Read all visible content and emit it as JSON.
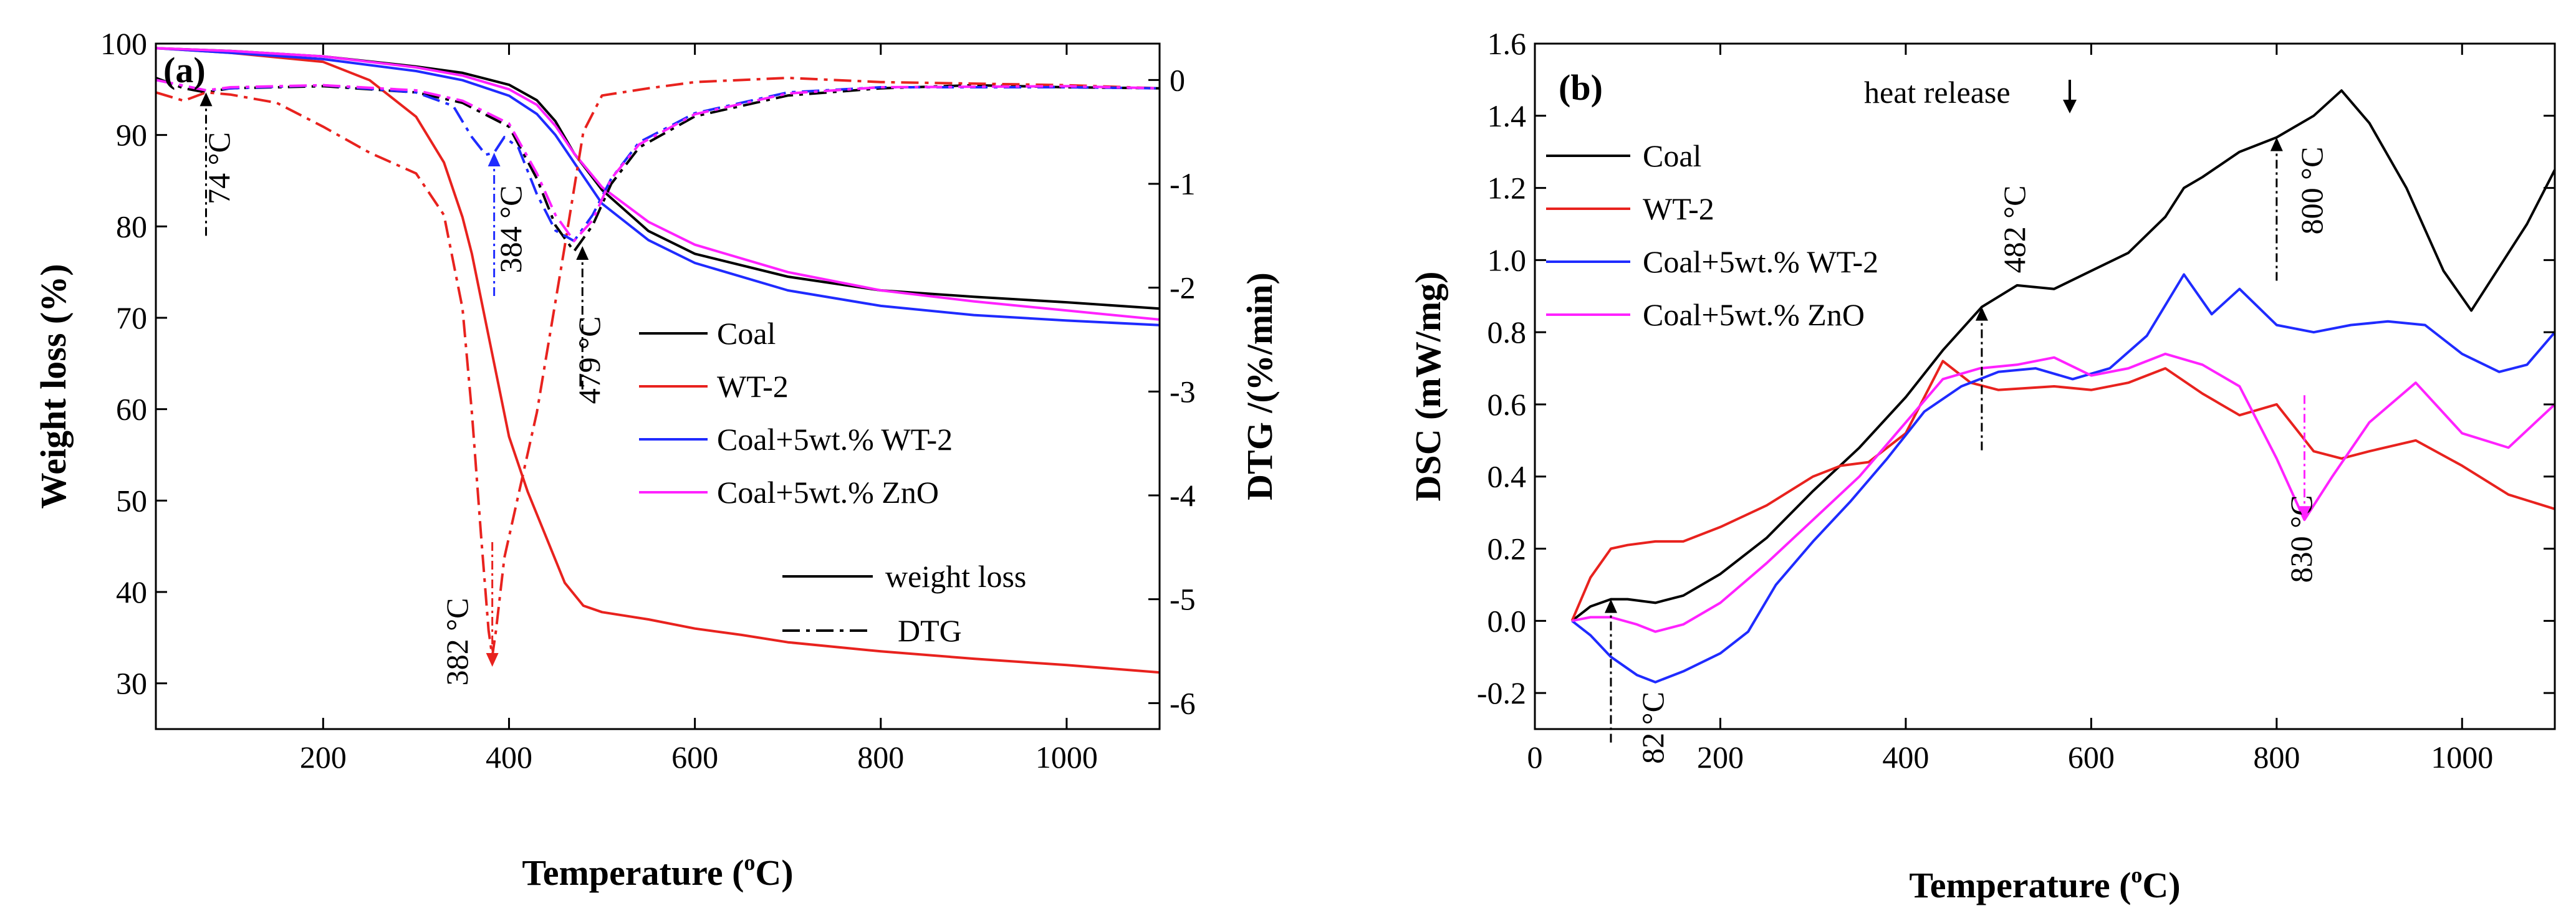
{
  "chart_data": [
    {
      "type": "line",
      "panel_label": "(a)",
      "xlabel_prefix": "Temperature (",
      "xlabel_sup": "o",
      "xlabel_suffix": "C)",
      "ylabel": "Weight loss (%)",
      "y2label": "DTG /(%/min)",
      "xlim": [
        20,
        1100
      ],
      "ylim": [
        25,
        100
      ],
      "y2lim": [
        -6.25,
        0.35
      ],
      "xticks": [
        "200",
        "400",
        "600",
        "800",
        "1000"
      ],
      "xtick_values": [
        200,
        400,
        600,
        800,
        1000
      ],
      "yticks": [
        "30",
        "40",
        "50",
        "60",
        "70",
        "80",
        "90",
        "100"
      ],
      "ytick_values": [
        30,
        40,
        50,
        60,
        70,
        80,
        90,
        100
      ],
      "y2ticks": [
        "0",
        "-1",
        "-2",
        "-3",
        "-4",
        "-5",
        "-6"
      ],
      "y2tick_values": [
        0,
        -1,
        -2,
        -3,
        -4,
        -5,
        -6
      ],
      "series": [
        {
          "name": "Coal",
          "color": "#000000",
          "axis": "left",
          "style": "solid",
          "x": [
            20,
            100,
            200,
            300,
            350,
            400,
            430,
            450,
            470,
            500,
            550,
            600,
            700,
            800,
            900,
            1000,
            1100
          ],
          "y": [
            99.5,
            99.2,
            98.6,
            97.5,
            96.8,
            95.5,
            93.8,
            91.5,
            88,
            84,
            79.5,
            77,
            74.5,
            73,
            72.3,
            71.7,
            71
          ]
        },
        {
          "name": "WT-2",
          "color": "#e8221e",
          "axis": "left",
          "style": "solid",
          "x": [
            20,
            100,
            200,
            250,
            300,
            330,
            350,
            360,
            370,
            380,
            390,
            400,
            420,
            440,
            460,
            480,
            500,
            550,
            600,
            650,
            700,
            800,
            900,
            1000,
            1100
          ],
          "y": [
            99.5,
            99,
            98,
            96,
            92,
            87,
            81,
            77,
            72,
            67,
            62,
            57,
            51,
            46,
            41,
            38.5,
            37.8,
            37,
            36,
            35.3,
            34.5,
            33.5,
            32.7,
            32,
            31.2
          ]
        },
        {
          "name": "Coal+5wt.% WT-2",
          "color": "#1f2bff",
          "axis": "left",
          "style": "solid",
          "x": [
            20,
            100,
            200,
            300,
            350,
            400,
            430,
            450,
            470,
            500,
            550,
            600,
            700,
            800,
            900,
            1000,
            1100
          ],
          "y": [
            99.5,
            99,
            98.3,
            97,
            96,
            94.3,
            92.3,
            90,
            87,
            82.5,
            78.5,
            76,
            73,
            71.3,
            70.3,
            69.7,
            69.2
          ]
        },
        {
          "name": "Coal+5wt.% ZnO",
          "color": "#ff22ff",
          "axis": "left",
          "style": "solid",
          "x": [
            20,
            100,
            200,
            300,
            350,
            400,
            430,
            450,
            470,
            500,
            550,
            600,
            700,
            800,
            900,
            1000,
            1100
          ],
          "y": [
            99.5,
            99.2,
            98.6,
            97.4,
            96.5,
            95,
            93.3,
            91,
            88,
            84.3,
            80.5,
            78,
            75,
            73,
            71.8,
            70.8,
            69.8
          ]
        },
        {
          "name": "Coal DTG",
          "color": "#000000",
          "axis": "right",
          "style": "dashdot",
          "x": [
            20,
            50,
            74,
            100,
            200,
            300,
            350,
            400,
            430,
            450,
            470,
            490,
            510,
            540,
            600,
            700,
            800,
            900,
            1000,
            1100
          ],
          "y": [
            0.02,
            -0.08,
            -0.12,
            -0.08,
            -0.06,
            -0.12,
            -0.22,
            -0.45,
            -0.95,
            -1.4,
            -1.65,
            -1.4,
            -1.0,
            -0.65,
            -0.35,
            -0.15,
            -0.08,
            -0.05,
            -0.07,
            -0.08
          ]
        },
        {
          "name": "WT-2 DTG",
          "color": "#e8221e",
          "axis": "right",
          "style": "dashdot",
          "x": [
            20,
            50,
            74,
            100,
            150,
            200,
            250,
            300,
            330,
            350,
            360,
            370,
            378,
            382,
            386,
            395,
            410,
            430,
            460,
            480,
            500,
            550,
            600,
            700,
            800,
            1000,
            1100
          ],
          "y": [
            -0.12,
            -0.2,
            -0.12,
            -0.14,
            -0.22,
            -0.45,
            -0.7,
            -0.9,
            -1.3,
            -2.2,
            -3.2,
            -4.4,
            -5.3,
            -5.55,
            -5.3,
            -4.6,
            -4.0,
            -3.2,
            -1.6,
            -0.5,
            -0.15,
            -0.08,
            -0.02,
            0.02,
            -0.02,
            -0.05,
            -0.08
          ]
        },
        {
          "name": "Coal+5wt.% WT-2 DTG",
          "color": "#1f2bff",
          "axis": "right",
          "style": "dashdot",
          "x": [
            20,
            74,
            100,
            200,
            300,
            340,
            360,
            375,
            384,
            395,
            410,
            430,
            450,
            470,
            490,
            510,
            540,
            600,
            700,
            800,
            1000,
            1100
          ],
          "y": [
            0.0,
            -0.1,
            -0.08,
            -0.05,
            -0.12,
            -0.25,
            -0.55,
            -0.72,
            -0.7,
            -0.55,
            -0.65,
            -1.1,
            -1.45,
            -1.55,
            -1.3,
            -0.95,
            -0.6,
            -0.32,
            -0.12,
            -0.07,
            -0.07,
            -0.08
          ]
        },
        {
          "name": "Coal+5wt.% ZnO DTG",
          "color": "#ff22ff",
          "axis": "right",
          "style": "dashdot",
          "x": [
            20,
            74,
            100,
            200,
            300,
            350,
            400,
            430,
            450,
            470,
            490,
            510,
            540,
            600,
            700,
            800,
            1000,
            1100
          ],
          "y": [
            0.0,
            -0.1,
            -0.07,
            -0.05,
            -0.1,
            -0.2,
            -0.42,
            -0.9,
            -1.3,
            -1.55,
            -1.35,
            -0.95,
            -0.62,
            -0.33,
            -0.13,
            -0.07,
            -0.06,
            -0.08
          ]
        }
      ],
      "legend": {
        "placement": "center-right",
        "entries": [
          "Coal",
          "WT-2",
          "Coal+5wt.% WT-2",
          "Coal+5wt.% ZnO"
        ],
        "colors": [
          "#000000",
          "#e8221e",
          "#1f2bff",
          "#ff22ff"
        ]
      },
      "style_legend": {
        "placement": "bottom-right",
        "entries": [
          "weight loss",
          "DTG"
        ]
      },
      "annotations": [
        {
          "text": "74 °C",
          "x": 74,
          "y_dtg": -0.12,
          "arrow_color": "#000000",
          "direction": "up"
        },
        {
          "text": "384 °C",
          "x": 384,
          "y_dtg": -0.7,
          "arrow_color": "#1f2bff",
          "direction": "up"
        },
        {
          "text": "479 °C",
          "x": 479,
          "y_dtg": -1.6,
          "arrow_color": "#000000",
          "direction": "up"
        },
        {
          "text": "382 °C",
          "x": 382,
          "y_dtg": -5.65,
          "arrow_color": "#e8221e",
          "direction": "down"
        }
      ]
    },
    {
      "type": "line",
      "panel_label": "(b)",
      "xlabel_prefix": "Temperature (",
      "xlabel_sup": "o",
      "xlabel_suffix": "C)",
      "ylabel": "DSC (mW/mg)",
      "xlim": [
        0,
        1100
      ],
      "ylim": [
        -0.3,
        1.6
      ],
      "xticks": [
        "0",
        "200",
        "400",
        "600",
        "800",
        "1000"
      ],
      "xtick_values": [
        0,
        200,
        400,
        600,
        800,
        1000
      ],
      "yticks": [
        "-0.2",
        "0.0",
        "0.2",
        "0.4",
        "0.6",
        "0.8",
        "1.0",
        "1.2",
        "1.4",
        "1.6"
      ],
      "ytick_values": [
        -0.2,
        0.0,
        0.2,
        0.4,
        0.6,
        0.8,
        1.0,
        1.2,
        1.4,
        1.6
      ],
      "series": [
        {
          "name": "Coal",
          "color": "#000000",
          "x": [
            40,
            60,
            82,
            100,
            130,
            160,
            200,
            250,
            300,
            350,
            400,
            440,
            482,
            520,
            560,
            600,
            640,
            680,
            700,
            720,
            760,
            800,
            840,
            870,
            900,
            940,
            980,
            1010,
            1040,
            1070,
            1100
          ],
          "y": [
            0.0,
            0.04,
            0.06,
            0.06,
            0.05,
            0.07,
            0.13,
            0.23,
            0.36,
            0.48,
            0.62,
            0.75,
            0.87,
            0.93,
            0.92,
            0.97,
            1.02,
            1.12,
            1.2,
            1.23,
            1.3,
            1.34,
            1.4,
            1.47,
            1.38,
            1.2,
            0.97,
            0.86,
            0.98,
            1.1,
            1.25
          ]
        },
        {
          "name": "WT-2",
          "color": "#e8221e",
          "x": [
            40,
            60,
            82,
            100,
            130,
            160,
            200,
            250,
            300,
            330,
            360,
            400,
            440,
            470,
            500,
            560,
            600,
            640,
            680,
            720,
            760,
            800,
            840,
            870,
            900,
            950,
            1000,
            1050,
            1100
          ],
          "y": [
            0.0,
            0.12,
            0.2,
            0.21,
            0.22,
            0.22,
            0.26,
            0.32,
            0.4,
            0.43,
            0.44,
            0.52,
            0.72,
            0.66,
            0.64,
            0.65,
            0.64,
            0.66,
            0.7,
            0.63,
            0.57,
            0.6,
            0.47,
            0.45,
            0.47,
            0.5,
            0.43,
            0.35,
            0.31
          ]
        },
        {
          "name": "Coal+5wt.% WT-2",
          "color": "#1f2bff",
          "x": [
            40,
            60,
            82,
            110,
            130,
            160,
            200,
            230,
            260,
            300,
            340,
            380,
            420,
            460,
            500,
            540,
            580,
            620,
            660,
            700,
            730,
            760,
            800,
            840,
            880,
            920,
            960,
            1000,
            1040,
            1070,
            1100
          ],
          "y": [
            0.0,
            -0.04,
            -0.1,
            -0.15,
            -0.17,
            -0.14,
            -0.09,
            -0.03,
            0.1,
            0.22,
            0.33,
            0.45,
            0.58,
            0.65,
            0.69,
            0.7,
            0.67,
            0.7,
            0.79,
            0.96,
            0.85,
            0.92,
            0.82,
            0.8,
            0.82,
            0.83,
            0.82,
            0.74,
            0.69,
            0.71,
            0.8
          ]
        },
        {
          "name": "Coal+5wt.% ZnO",
          "color": "#ff22ff",
          "x": [
            40,
            60,
            82,
            110,
            130,
            160,
            200,
            250,
            300,
            350,
            400,
            440,
            480,
            520,
            560,
            600,
            640,
            680,
            720,
            760,
            800,
            830,
            860,
            900,
            950,
            1000,
            1050,
            1100
          ],
          "y": [
            0.0,
            0.01,
            0.01,
            -0.01,
            -0.03,
            -0.01,
            0.05,
            0.16,
            0.28,
            0.4,
            0.55,
            0.67,
            0.7,
            0.71,
            0.73,
            0.68,
            0.7,
            0.74,
            0.71,
            0.65,
            0.45,
            0.28,
            0.4,
            0.55,
            0.66,
            0.52,
            0.48,
            0.6
          ]
        }
      ],
      "legend": {
        "placement": "top-left",
        "entries": [
          "Coal",
          "WT-2",
          "Coal+5wt.% WT-2",
          "Coal+5wt.% ZnO"
        ],
        "colors": [
          "#000000",
          "#e8221e",
          "#1f2bff",
          "#ff22ff"
        ]
      },
      "heat_release_label": "heat release",
      "annotations": [
        {
          "text": "82 °C",
          "x": 82,
          "y": 0.06,
          "arrow_color": "#000000",
          "direction": "up"
        },
        {
          "text": "482 °C",
          "x": 482,
          "y": 0.87,
          "arrow_color": "#000000",
          "direction": "up"
        },
        {
          "text": "800 °C",
          "x": 800,
          "y": 1.34,
          "arrow_color": "#000000",
          "direction": "up"
        },
        {
          "text": "830 °C",
          "x": 830,
          "y": 0.28,
          "arrow_color": "#ff22ff",
          "direction": "down"
        }
      ]
    }
  ]
}
